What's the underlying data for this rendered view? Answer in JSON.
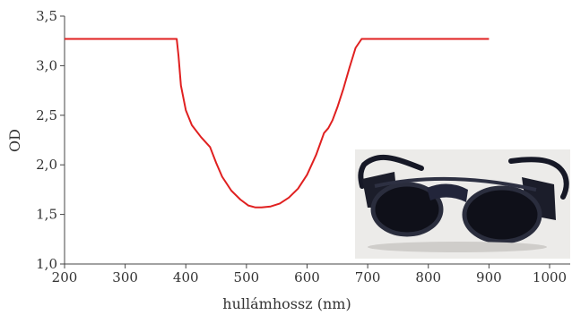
{
  "chart_data": {
    "type": "line",
    "xlabel": "hullámhossz (nm)",
    "ylabel": "OD",
    "xlim": [
      200,
      1020
    ],
    "ylim": [
      1.0,
      3.5
    ],
    "xticks": [
      200,
      300,
      400,
      500,
      600,
      700,
      800,
      900,
      1000
    ],
    "yticks": [
      1.0,
      1.5,
      2.0,
      2.5,
      3.0,
      3.5
    ],
    "xtick_labels": [
      "200",
      "300",
      "400",
      "500",
      "600",
      "700",
      "800",
      "900",
      "1000"
    ],
    "ytick_labels": [
      "1,0",
      "1,5",
      "2,0",
      "2,5",
      "3,0",
      "3,5"
    ],
    "grid": false,
    "line_color": "#e02020",
    "series": [
      {
        "x": [
          200,
          385,
          388,
          392,
          400,
          410,
          425,
          440,
          450,
          460,
          475,
          490,
          503,
          515,
          525,
          540,
          555,
          570,
          585,
          600,
          615,
          628,
          635,
          642,
          650,
          660,
          670,
          680,
          690,
          900
        ],
        "y": [
          3.27,
          3.27,
          3.1,
          2.8,
          2.55,
          2.4,
          2.28,
          2.18,
          2.02,
          1.88,
          1.74,
          1.65,
          1.59,
          1.57,
          1.57,
          1.58,
          1.61,
          1.67,
          1.76,
          1.9,
          2.1,
          2.32,
          2.37,
          2.45,
          2.58,
          2.77,
          2.98,
          3.18,
          3.27,
          3.27
        ]
      }
    ]
  },
  "inset_image": {
    "subject": "dark-lensed protective goggles with side shields",
    "background_color": "#ecebe9",
    "frame_color": "#131523"
  }
}
